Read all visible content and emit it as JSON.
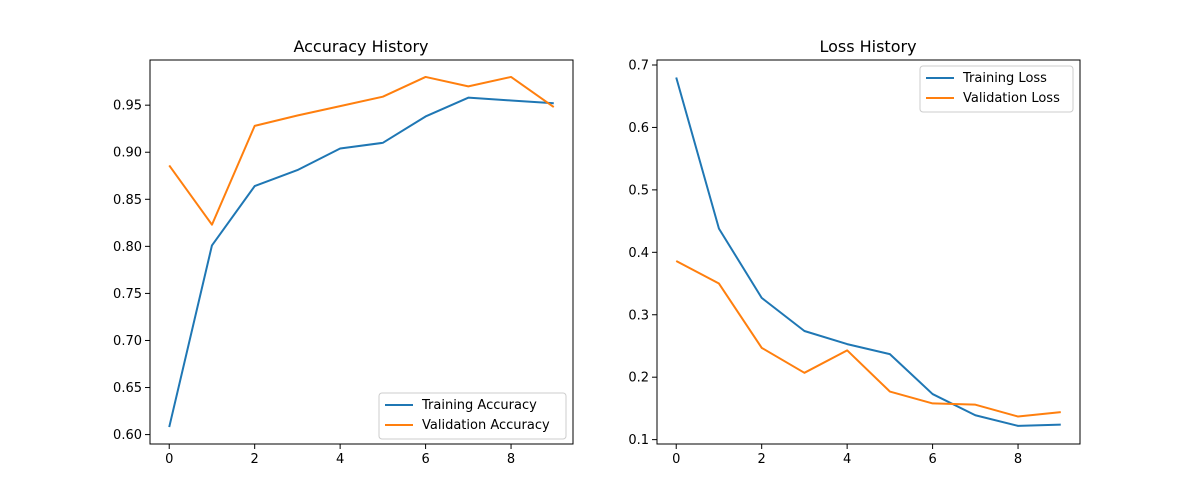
{
  "chart_data": [
    {
      "type": "line",
      "title": "Accuracy History",
      "xlabel": "",
      "ylabel": "",
      "xlim": [
        -0.45,
        9.45
      ],
      "ylim": [
        0.59,
        0.998
      ],
      "x_ticks": [
        0,
        2,
        4,
        6,
        8
      ],
      "y_ticks": [
        0.6,
        0.65,
        0.7,
        0.75,
        0.8,
        0.85,
        0.9,
        0.95
      ],
      "y_tick_labels": [
        "0.60",
        "0.65",
        "0.70",
        "0.75",
        "0.80",
        "0.85",
        "0.90",
        "0.95"
      ],
      "x": [
        0,
        1,
        2,
        3,
        4,
        5,
        6,
        7,
        8,
        9
      ],
      "series": [
        {
          "name": "Training Accuracy",
          "color": "#1f77b4",
          "values": [
            0.608,
            0.801,
            0.864,
            0.881,
            0.904,
            0.91,
            0.938,
            0.958,
            0.955,
            0.952
          ]
        },
        {
          "name": "Validation Accuracy",
          "color": "#ff7f0e",
          "values": [
            0.886,
            0.823,
            0.928,
            0.939,
            0.949,
            0.959,
            0.98,
            0.97,
            0.98,
            0.948
          ]
        }
      ],
      "legend": "lower-right",
      "grid": false
    },
    {
      "type": "line",
      "title": "Loss History",
      "xlabel": "",
      "ylabel": "",
      "xlim": [
        -0.45,
        9.45
      ],
      "ylim": [
        0.093,
        0.708
      ],
      "x_ticks": [
        0,
        2,
        4,
        6,
        8
      ],
      "y_ticks": [
        0.1,
        0.2,
        0.3,
        0.4,
        0.5,
        0.6,
        0.7
      ],
      "y_tick_labels": [
        "0.1",
        "0.2",
        "0.3",
        "0.4",
        "0.5",
        "0.6",
        "0.7"
      ],
      "x": [
        0,
        1,
        2,
        3,
        4,
        5,
        6,
        7,
        8,
        9
      ],
      "series": [
        {
          "name": "Training Loss",
          "color": "#1f77b4",
          "values": [
            0.68,
            0.438,
            0.327,
            0.274,
            0.253,
            0.237,
            0.173,
            0.139,
            0.122,
            0.124
          ]
        },
        {
          "name": "Validation Loss",
          "color": "#ff7f0e",
          "values": [
            0.386,
            0.35,
            0.247,
            0.207,
            0.243,
            0.177,
            0.158,
            0.156,
            0.137,
            0.144
          ]
        }
      ],
      "legend": "upper-right",
      "grid": false
    }
  ]
}
